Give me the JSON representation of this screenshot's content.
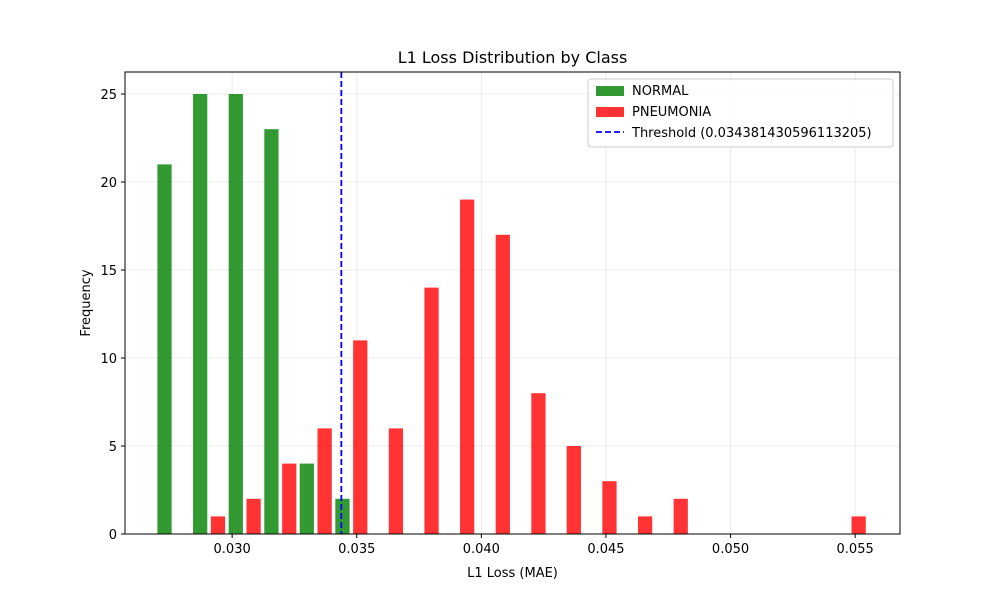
{
  "chart_data": {
    "type": "bar",
    "title": "L1 Loss Distribution by Class",
    "xlabel": "L1 Loss (MAE)",
    "ylabel": "Frequency",
    "xlim": [
      0.0257,
      0.0568
    ],
    "ylim": [
      0,
      26.25
    ],
    "xticks": [
      0.03,
      0.035,
      0.04,
      0.045,
      0.05,
      0.055
    ],
    "xtick_labels": [
      "0.030",
      "0.035",
      "0.040",
      "0.045",
      "0.050",
      "0.055"
    ],
    "yticks": [
      0,
      5,
      10,
      15,
      20,
      25
    ],
    "ytick_labels": [
      "0",
      "5",
      "10",
      "15",
      "20",
      "25"
    ],
    "grid": true,
    "legend_position": "top-right",
    "bins": [
      0.027,
      0.02843,
      0.02986,
      0.03129,
      0.03271,
      0.03414,
      0.03557,
      0.037,
      0.03843,
      0.03986,
      0.04129,
      0.04271,
      0.04414,
      0.04557,
      0.047,
      0.04843,
      0.04986,
      0.05129,
      0.05271,
      0.05414
    ],
    "series": [
      {
        "name": "NORMAL",
        "color": "#008000",
        "values": [
          21,
          25,
          25,
          23,
          4,
          2,
          0,
          0,
          0,
          0,
          0,
          0,
          0,
          0,
          0,
          0,
          0,
          0,
          0,
          0
        ]
      },
      {
        "name": "PNEUMONIA",
        "color": "#ff0000",
        "values": [
          0,
          1,
          2,
          4,
          6,
          11,
          6,
          14,
          19,
          17,
          8,
          5,
          3,
          1,
          2,
          0,
          0,
          0,
          0,
          1
        ]
      }
    ],
    "threshold": {
      "name": "Threshold (0.034381430596113205)",
      "value": 0.034381430596113205,
      "color": "#0000ff",
      "style": "dashed"
    }
  }
}
